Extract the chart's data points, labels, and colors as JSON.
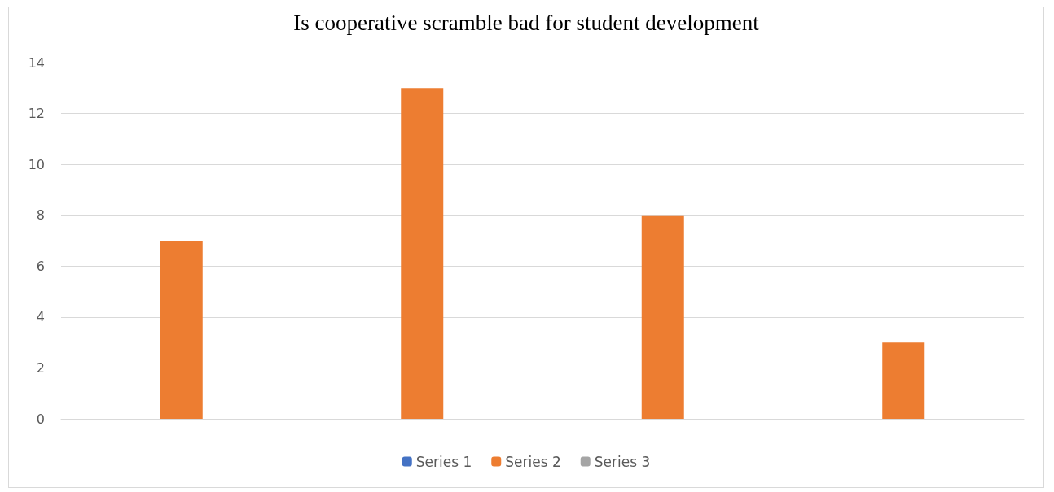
{
  "chart_data": {
    "type": "bar",
    "title": "Is cooperative scramble bad for student development",
    "categories": [
      null,
      null,
      null,
      null
    ],
    "series": [
      {
        "name": "Series 1",
        "color": "#4472c4",
        "values": [
          null,
          null,
          null,
          null
        ]
      },
      {
        "name": "Series 2",
        "color": "#ed7d31",
        "values": [
          7,
          13,
          8,
          3
        ]
      },
      {
        "name": "Series 3",
        "color": "#a5a5a5",
        "values": [
          null,
          null,
          null,
          null
        ]
      }
    ],
    "ylim": [
      0,
      14
    ],
    "yticks": [
      0,
      2,
      4,
      6,
      8,
      10,
      12,
      14
    ],
    "grid": "y",
    "legend": "bottom"
  }
}
